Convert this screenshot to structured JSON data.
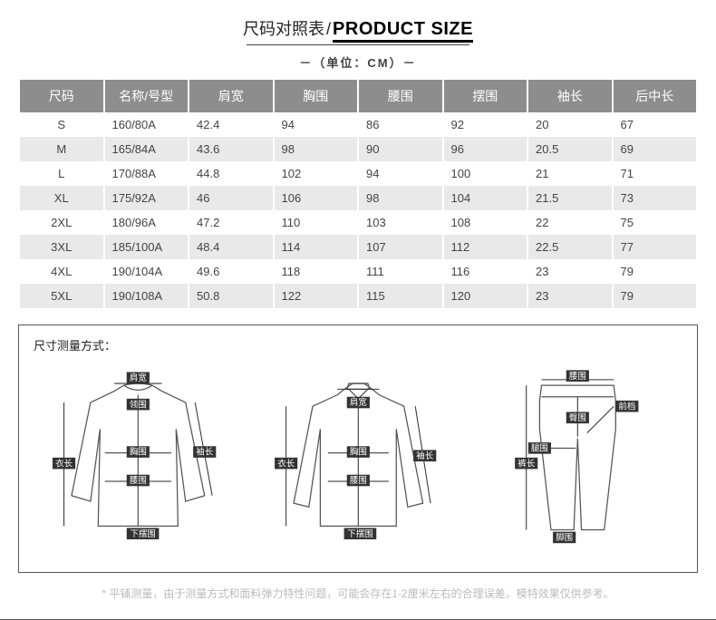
{
  "title": {
    "cn": "尺码对照表",
    "sep": "/",
    "en": "PRODUCT SIZE"
  },
  "unit": "－（单位：CM）－",
  "table": {
    "headers": [
      "尺码",
      "名称/号型",
      "肩宽",
      "胸围",
      "腰围",
      "摆围",
      "袖长",
      "后中长"
    ],
    "rows": [
      [
        "S",
        "160/80A",
        "42.4",
        "94",
        "86",
        "92",
        "20",
        "67"
      ],
      [
        "M",
        "165/84A",
        "43.6",
        "98",
        "90",
        "96",
        "20.5",
        "69"
      ],
      [
        "L",
        "170/88A",
        "44.8",
        "102",
        "94",
        "100",
        "21",
        "71"
      ],
      [
        "XL",
        "175/92A",
        "46",
        "106",
        "98",
        "104",
        "21.5",
        "73"
      ],
      [
        "2XL",
        "180/96A",
        "47.2",
        "110",
        "103",
        "108",
        "22",
        "75"
      ],
      [
        "3XL",
        "185/100A",
        "48.4",
        "114",
        "107",
        "112",
        "22.5",
        "77"
      ],
      [
        "4XL",
        "190/104A",
        "49.6",
        "118",
        "111",
        "116",
        "23",
        "79"
      ],
      [
        "5XL",
        "190/108A",
        "50.8",
        "122",
        "115",
        "120",
        "23",
        "79"
      ]
    ]
  },
  "diagram": {
    "title": "尺寸测量方式：",
    "labels": {
      "shoulder": "肩宽",
      "collar": "领围",
      "chest": "胸围",
      "length": "衣长",
      "sleeve": "袖长",
      "waist": "腰围",
      "hem": "下摆围",
      "hip": "臀围",
      "thigh": "腿围",
      "pantlen": "裤长",
      "rise": "前档",
      "ankle": "脚围"
    }
  },
  "footnote": "*  平铺测量，由于测量方式和面料弹力特性问题，可能会存在1-2厘米左右的合理误差。模特效果仅供参考。",
  "colors": {
    "header_bg": "#8d8d8d",
    "header_fg": "#ffffff",
    "row_even": "#e9e9e9",
    "row_odd": "#ffffff",
    "text": "#444444",
    "border": "#555555",
    "footnote": "#bbbbbb",
    "label_box": "#333333"
  }
}
